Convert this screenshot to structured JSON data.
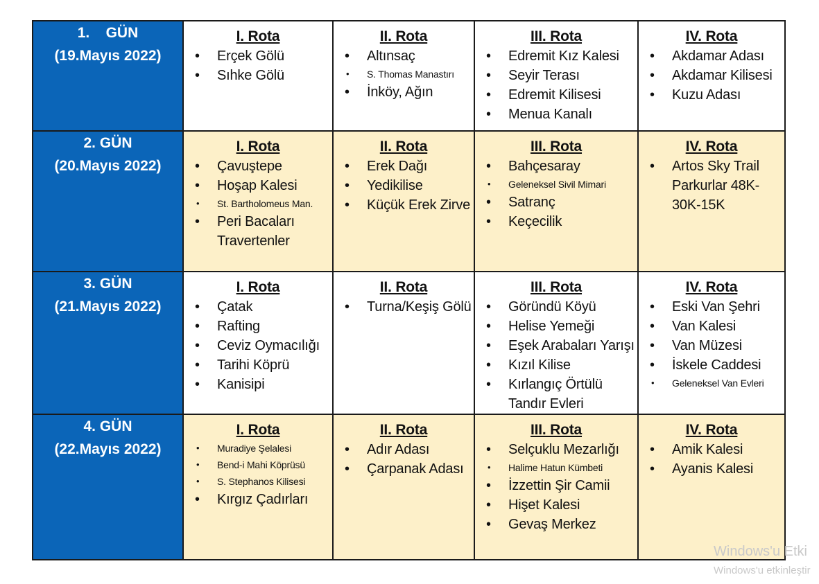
{
  "days": [
    {
      "day": "1.    GÜN",
      "date": "(19.Mayıs 2022)",
      "routes": [
        {
          "title": "I. Rota",
          "items": [
            {
              "text": "Erçek Gölü",
              "small": false
            },
            {
              "text": "Sıhke Gölü",
              "small": false
            }
          ]
        },
        {
          "title": "II. Rota",
          "items": [
            {
              "text": "Altınsaç",
              "small": false
            },
            {
              "text": "S. Thomas Manastırı",
              "small": true
            },
            {
              "text": "İnköy, Ağın",
              "small": false
            }
          ]
        },
        {
          "title": "III. Rota",
          "items": [
            {
              "text": "Edremit Kız Kalesi",
              "small": false
            },
            {
              "text": "Seyir Terası",
              "small": false
            },
            {
              "text": "Edremit Kilisesi",
              "small": false
            },
            {
              "text": "Menua Kanalı",
              "small": false
            }
          ]
        },
        {
          "title": "IV. Rota",
          "items": [
            {
              "text": "Akdamar Adası",
              "small": false
            },
            {
              "text": "Akdamar Kilisesi",
              "small": false
            },
            {
              "text": "Kuzu Adası",
              "small": false
            }
          ]
        }
      ]
    },
    {
      "day": "2. GÜN",
      "date": "(20.Mayıs 2022)",
      "routes": [
        {
          "title": "I. Rota",
          "items": [
            {
              "text": "Çavuştepe",
              "small": false
            },
            {
              "text": "Hoşap Kalesi",
              "small": false
            },
            {
              "text": "St. Bartholomeus Man.",
              "small": true
            },
            {
              "text": "Peri Bacaları Travertenler",
              "small": false
            }
          ]
        },
        {
          "title": "II. Rota",
          "items": [
            {
              "text": "Erek Dağı",
              "small": false
            },
            {
              "text": "Yedikilise",
              "small": false
            },
            {
              "text": "Küçük Erek Zirve",
              "small": false
            }
          ]
        },
        {
          "title": "III. Rota",
          "items": [
            {
              "text": "Bahçesaray",
              "small": false
            },
            {
              "text": "Geleneksel Sivil Mimari",
              "small": true
            },
            {
              "text": "Satranç",
              "small": false
            },
            {
              "text": "Keçecilik",
              "small": false
            }
          ]
        },
        {
          "title": "IV. Rota",
          "items": [
            {
              "text": "Artos Sky Trail Parkurlar 48K-30K-15K",
              "small": false
            }
          ]
        }
      ]
    },
    {
      "day": "3. GÜN",
      "date": "(21.Mayıs 2022)",
      "routes": [
        {
          "title": "I. Rota",
          "items": [
            {
              "text": "Çatak",
              "small": false
            },
            {
              "text": "Rafting",
              "small": false
            },
            {
              "text": "Ceviz Oymacılığı",
              "small": false
            },
            {
              "text": "Tarihi Köprü",
              "small": false
            },
            {
              "text": "Kanisipi",
              "small": false
            }
          ]
        },
        {
          "title": "II. Rota",
          "items": [
            {
              "text": "Turna/Keşiş Gölü",
              "small": false
            }
          ]
        },
        {
          "title": "III. Rota",
          "items": [
            {
              "text": "Göründü Köyü",
              "small": false
            },
            {
              "text": "Helise Yemeği",
              "small": false
            },
            {
              "text": "Eşek Arabaları Yarışı",
              "small": false
            },
            {
              "text": "Kızıl Kilise",
              "small": false
            },
            {
              "text": "Kırlangıç Örtülü Tandır Evleri",
              "small": false
            }
          ]
        },
        {
          "title": "IV. Rota",
          "items": [
            {
              "text": "Eski Van Şehri",
              "small": false
            },
            {
              "text": "Van Kalesi",
              "small": false
            },
            {
              "text": "Van Müzesi",
              "small": false
            },
            {
              "text": "İskele Caddesi",
              "small": false
            },
            {
              "text": "Geleneksel Van Evleri",
              "small": true
            }
          ]
        }
      ]
    },
    {
      "day": "4. GÜN",
      "date": "(22.Mayıs 2022)",
      "routes": [
        {
          "title": "I. Rota",
          "items": [
            {
              "text": "Muradiye Şelalesi",
              "small": true
            },
            {
              "text": "Bend-i Mahi Köprüsü",
              "small": true
            },
            {
              "text": "S. Stephanos Kilisesi",
              "small": true
            },
            {
              "text": "Kırgız Çadırları",
              "small": false
            }
          ]
        },
        {
          "title": "II. Rota",
          "items": [
            {
              "text": "Adır Adası",
              "small": false
            },
            {
              "text": "Çarpanak Adası",
              "small": false
            }
          ]
        },
        {
          "title": "III. Rota",
          "items": [
            {
              "text": "Selçuklu Mezarlığı",
              "small": false
            },
            {
              "text": "Halime Hatun Kümbeti",
              "small": true
            },
            {
              "text": "İzzettin Şir Camii",
              "small": false
            },
            {
              "text": "Hişet Kalesi",
              "small": false
            },
            {
              "text": "Gevaş Merkez",
              "small": false
            }
          ]
        },
        {
          "title": "IV. Rota",
          "items": [
            {
              "text": "Amik Kalesi",
              "small": false
            },
            {
              "text": "Ayanis Kalesi",
              "small": false
            }
          ]
        }
      ]
    }
  ],
  "watermark": {
    "line1": "Windows'u Etki",
    "line2": "Windows'u etkinleştir"
  },
  "colors": {
    "day_cell_bg": "#0b65b8",
    "alt_row_bg": "#fdf0c9",
    "border": "#1a1a1a"
  }
}
